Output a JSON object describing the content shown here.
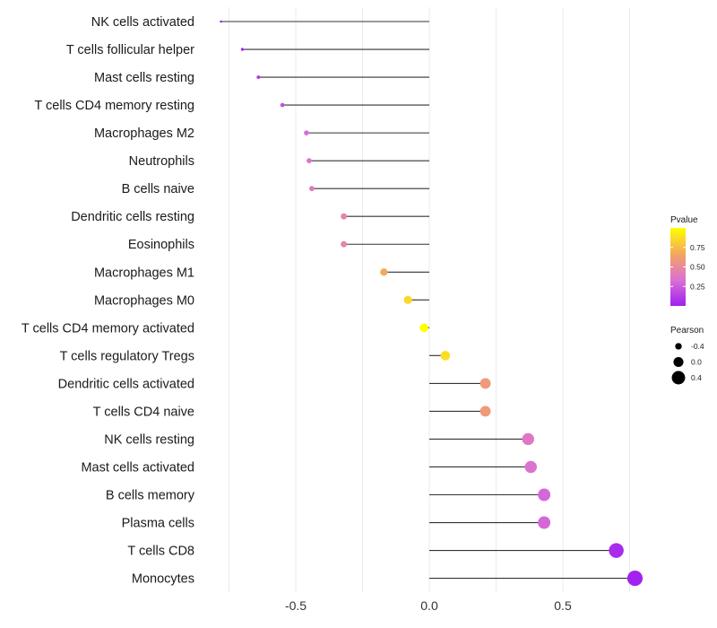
{
  "chart_data": {
    "type": "lollipop",
    "xlabel": "",
    "ylabel": "",
    "xlim": [
      -0.83,
      0.8
    ],
    "xticks": [
      -0.5,
      0.0,
      0.5
    ],
    "xtick_labels": [
      "-0.5",
      "0.0",
      "0.5"
    ],
    "grid": true,
    "categories": [
      "NK cells activated",
      "T cells follicular helper",
      "Mast cells resting",
      "T cells CD4 memory resting",
      "Macrophages M2",
      "Neutrophils",
      "B cells naive",
      "Dendritic cells resting",
      "Eosinophils",
      "Macrophages M1",
      "Macrophages M0",
      "T cells CD4 memory activated",
      "T cells regulatory  Tregs ",
      "Dendritic cells activated",
      "T cells CD4 naive",
      "NK cells resting",
      "Mast cells activated",
      "B cells memory",
      "Plasma cells",
      "T cells CD8",
      "Monocytes"
    ],
    "pearson": [
      -0.78,
      -0.7,
      -0.64,
      -0.55,
      -0.46,
      -0.45,
      -0.44,
      -0.32,
      -0.32,
      -0.17,
      -0.08,
      -0.02,
      0.06,
      0.21,
      0.21,
      0.37,
      0.38,
      0.43,
      0.43,
      0.7,
      0.77
    ],
    "pvalue": [
      0.01,
      0.03,
      0.1,
      0.2,
      0.32,
      0.35,
      0.4,
      0.47,
      0.48,
      0.68,
      0.86,
      1.0,
      0.88,
      0.6,
      0.6,
      0.38,
      0.35,
      0.3,
      0.3,
      0.05,
      0.01
    ],
    "legend_pvalue": {
      "title": "Pvalue",
      "ticks": [
        0.25,
        0.5,
        0.75
      ],
      "tick_labels": [
        "0.25",
        "0.50",
        "0.75"
      ],
      "range": [
        0.0,
        1.0
      ],
      "colors": [
        "#a020f0",
        "#da70d6",
        "#f4a460",
        "#ffff00"
      ]
    },
    "legend_pearson": {
      "title": "Pearson",
      "values": [
        -0.4,
        0.0,
        0.4
      ],
      "labels": [
        "-0.4",
        "0.0",
        "0.4"
      ]
    }
  }
}
